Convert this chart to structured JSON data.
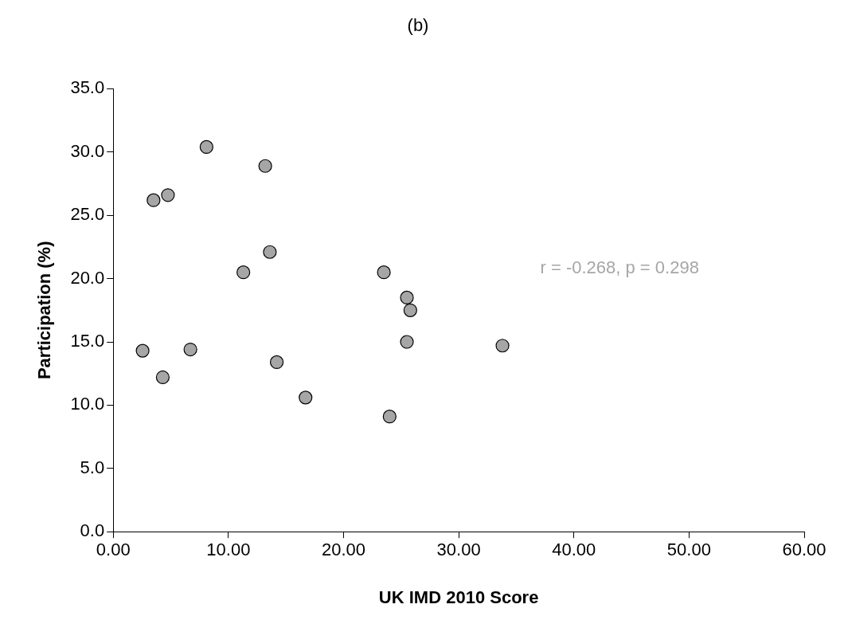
{
  "chart_data": {
    "type": "scatter",
    "title": "(b)",
    "xlabel": "UK IMD 2010 Score",
    "ylabel": "Participation (%)",
    "annotations": [
      "r = -0.268, p = 0.298"
    ],
    "x": [
      3.5,
      4.75,
      8.1,
      13.2,
      13.6,
      11.3,
      2.55,
      4.3,
      6.7,
      14.2,
      16.7,
      23.5,
      25.5,
      25.8,
      25.5,
      24.0,
      33.8
    ],
    "series": [
      {
        "color": "#a6a6a6",
        "values": [
          26.2,
          26.6,
          30.4,
          28.9,
          22.1,
          20.5,
          14.3,
          12.2,
          14.4,
          13.4,
          10.6,
          20.5,
          18.5,
          17.5,
          15.0,
          9.1,
          14.7
        ]
      }
    ],
    "xlim": [
      0,
      60
    ],
    "xticks": [
      {
        "value": 0,
        "label": "0.00"
      },
      {
        "value": 10,
        "label": "10.00"
      },
      {
        "value": 20,
        "label": "20.00"
      },
      {
        "value": 30,
        "label": "30.00"
      },
      {
        "value": 40,
        "label": "40.00"
      },
      {
        "value": 50,
        "label": "50.00"
      },
      {
        "value": 60,
        "label": "60.00"
      }
    ],
    "ylim": [
      0,
      35
    ],
    "yticks": [
      {
        "value": 0,
        "label": "0.0"
      },
      {
        "value": 5,
        "label": "5.0"
      },
      {
        "value": 10,
        "label": "10.0"
      },
      {
        "value": 15,
        "label": "15.0"
      },
      {
        "value": 20,
        "label": "20.0"
      },
      {
        "value": 25,
        "label": "25.0"
      },
      {
        "value": 30,
        "label": "30.0"
      },
      {
        "value": 35,
        "label": "35.0"
      }
    ],
    "grid": false,
    "legend": false,
    "marker": "circle"
  }
}
